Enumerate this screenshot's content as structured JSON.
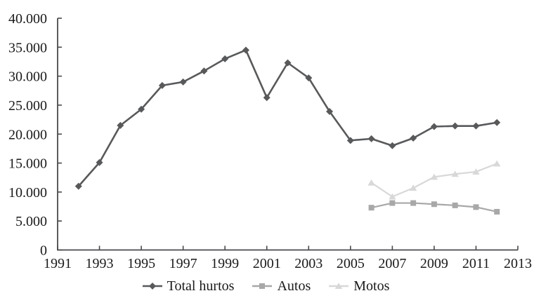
{
  "figure": {
    "background": "#ffffff",
    "text_color": "#1a1a1a",
    "axis_color": "#4a4a4c"
  },
  "chart_data": {
    "type": "line",
    "title": "",
    "xlabel": "",
    "ylabel": "",
    "grid": false,
    "legend_position": "bottom",
    "xlim": [
      1991,
      2013
    ],
    "ylim": [
      0,
      40000
    ],
    "xticks": [
      1991,
      1993,
      1995,
      1997,
      1999,
      2001,
      2003,
      2005,
      2007,
      2009,
      2011,
      2013
    ],
    "yticks": [
      0,
      5000,
      10000,
      15000,
      20000,
      25000,
      30000,
      35000,
      40000
    ],
    "ytick_labels": [
      "0",
      "5.000",
      "10.000",
      "15.000",
      "20.000",
      "25.000",
      "30.000",
      "35.000",
      "40.000"
    ],
    "series": [
      {
        "name": "Total hurtos",
        "marker": "diamond",
        "color": "#58595b",
        "x": [
          1992,
          1993,
          1994,
          1995,
          1996,
          1997,
          1998,
          1999,
          2000,
          2001,
          2002,
          2003,
          2004,
          2005,
          2006,
          2007,
          2008,
          2009,
          2010,
          2011,
          2012
        ],
        "values": [
          11000,
          15100,
          21500,
          24300,
          28400,
          29000,
          30900,
          33000,
          34500,
          26300,
          32300,
          29700,
          23900,
          18900,
          19200,
          18000,
          19300,
          21300,
          21400,
          21400,
          22000
        ]
      },
      {
        "name": "Autos",
        "marker": "square",
        "color": "#a8a8a8",
        "x": [
          2006,
          2007,
          2008,
          2009,
          2010,
          2011,
          2012
        ],
        "values": [
          7300,
          8100,
          8100,
          7900,
          7700,
          7400,
          6600
        ]
      },
      {
        "name": "Motos",
        "marker": "triangle",
        "color": "#d8d8d8",
        "x": [
          2006,
          2007,
          2008,
          2009,
          2010,
          2011,
          2012
        ],
        "values": [
          11600,
          9200,
          10700,
          12600,
          13100,
          13500,
          14900
        ]
      }
    ]
  }
}
